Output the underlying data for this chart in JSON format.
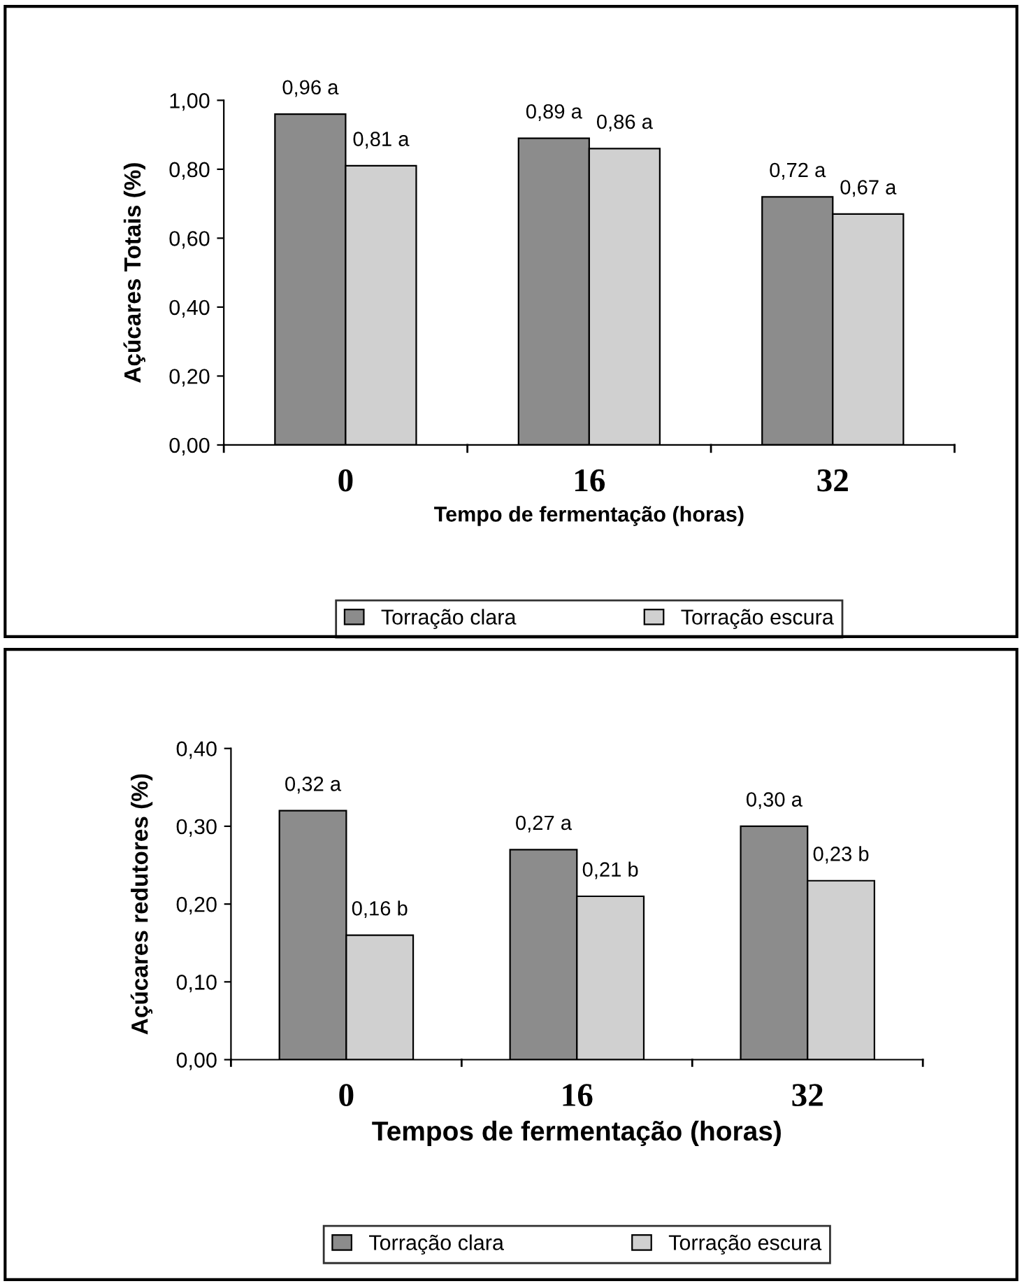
{
  "chart_data": [
    {
      "type": "bar",
      "categories": [
        "0",
        "16",
        "32"
      ],
      "xlabel": "Tempo de fermentação (horas)",
      "ylabel": "Açúcares Totais (%)",
      "series": [
        {
          "name": "Torração clara",
          "color": "#8c8c8c",
          "values": [
            0.96,
            0.89,
            0.72
          ],
          "value_labels": [
            "0,96 a",
            "0,89 a",
            "0,72 a"
          ]
        },
        {
          "name": "Torração escura",
          "color": "#d0d0d0",
          "values": [
            0.81,
            0.86,
            0.67
          ],
          "value_labels": [
            "0,81 a",
            "0,86 a",
            "0,67 a"
          ]
        }
      ],
      "ylim": [
        0,
        1.0
      ],
      "yticks": [
        {
          "value": 0,
          "label": "0,00"
        },
        {
          "value": 0.2,
          "label": "0,20"
        },
        {
          "value": 0.4,
          "label": "0,40"
        },
        {
          "value": 0.6,
          "label": "0,60"
        },
        {
          "value": 0.8,
          "label": "0,80"
        },
        {
          "value": 1.0,
          "label": "1,00"
        }
      ],
      "grid": false,
      "legend": "bottom"
    },
    {
      "type": "bar",
      "categories": [
        "0",
        "16",
        "32"
      ],
      "xlabel": "Tempos de fermentação (horas)",
      "ylabel": "Açúcares redutores (%)",
      "series": [
        {
          "name": "Torração clara",
          "color": "#8c8c8c",
          "values": [
            0.32,
            0.27,
            0.3
          ],
          "value_labels": [
            "0,32 a",
            "0,27 a",
            "0,30 a"
          ]
        },
        {
          "name": "Torração escura",
          "color": "#d0d0d0",
          "values": [
            0.16,
            0.21,
            0.23
          ],
          "value_labels": [
            "0,16 b",
            "0,21 b",
            "0,23 b"
          ]
        }
      ],
      "ylim": [
        0,
        0.4
      ],
      "yticks": [
        {
          "value": 0,
          "label": "0,00"
        },
        {
          "value": 0.1,
          "label": "0,10"
        },
        {
          "value": 0.2,
          "label": "0,20"
        },
        {
          "value": 0.3,
          "label": "0,30"
        },
        {
          "value": 0.4,
          "label": "0,40"
        }
      ],
      "grid": false,
      "legend": "bottom"
    }
  ]
}
